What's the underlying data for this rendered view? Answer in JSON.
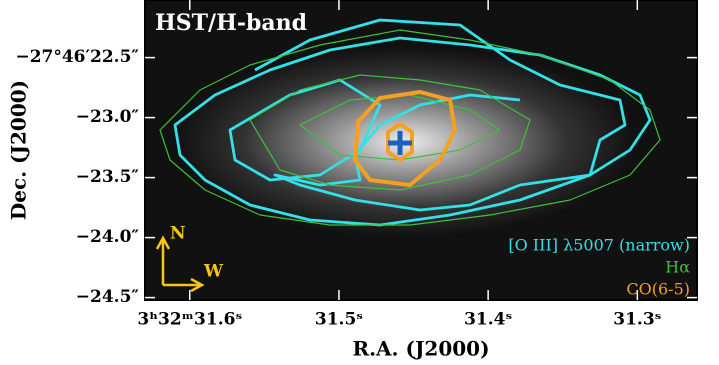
{
  "chart_data": {
    "type": "image",
    "title": "HST/H-band",
    "xlabel": "R.A. (J2000)",
    "ylabel": "Dec. (J2000)",
    "xlim": [
      31.63,
      31.26
    ],
    "ylim": [
      -24.52,
      -22.02
    ],
    "xticks": [
      {
        "value": 31.6,
        "label": "3ʰ32ᵐ31.6ˢ"
      },
      {
        "value": 31.5,
        "label": "31.5ˢ"
      },
      {
        "value": 31.4,
        "label": "31.4ˢ"
      },
      {
        "value": 31.3,
        "label": "31.3ˢ"
      }
    ],
    "yticks": [
      {
        "value": -22.5,
        "label": "−27°46′22.5″"
      },
      {
        "value": -23.0,
        "label": "−23.0″"
      },
      {
        "value": -23.5,
        "label": "−23.5″"
      },
      {
        "value": -24.0,
        "label": "−24.0″"
      },
      {
        "value": -24.5,
        "label": "−24.5″"
      }
    ],
    "series": [
      {
        "name": "[O III] λ5007 (narrow)",
        "color": "#33e0e8"
      },
      {
        "name": "Hα",
        "color": "#3fbf3f"
      },
      {
        "name": "CO(6-5)",
        "color": "#f5a020"
      }
    ],
    "compass": [
      "N",
      "W"
    ]
  }
}
